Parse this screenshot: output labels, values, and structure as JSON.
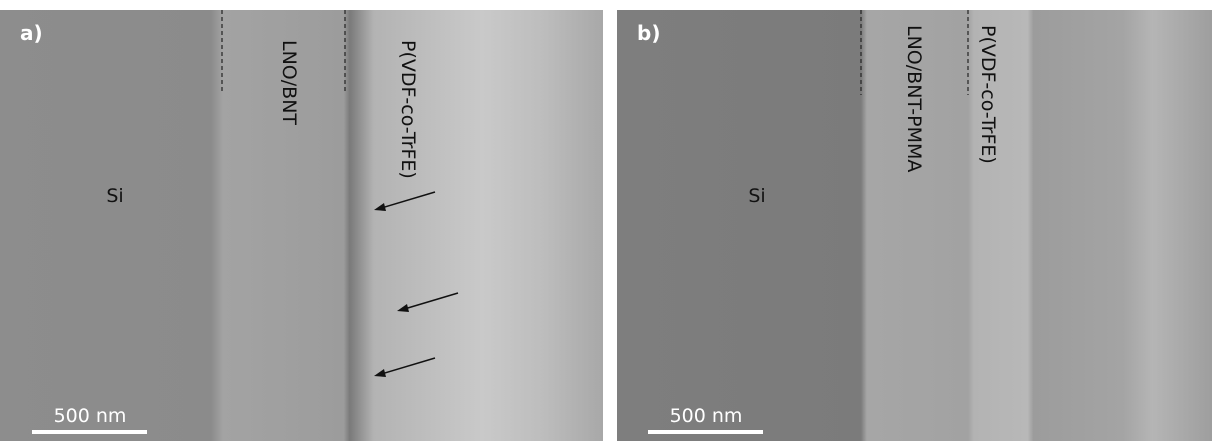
{
  "panels": [
    {
      "label": "a)",
      "regions": [
        "Si",
        "LNO/BNT",
        "P(VDF-co-TrFE)"
      ],
      "scale_bar": "500 nm"
    },
    {
      "label": "b)",
      "regions": [
        "Si",
        "LNO/BNT-PMMA",
        "P(VDF-co-TrFE)"
      ],
      "scale_bar": "500 nm"
    }
  ]
}
